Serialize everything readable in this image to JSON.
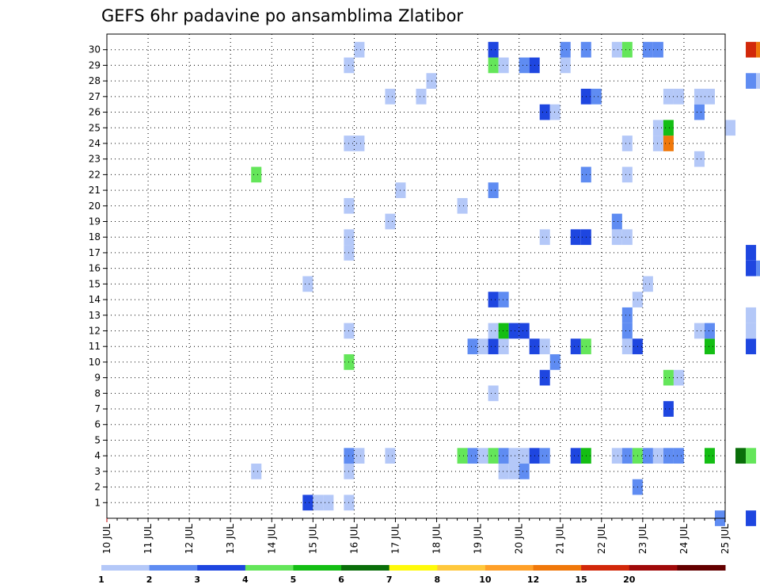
{
  "chart_data": {
    "type": "heatmap",
    "title": "GEFS 6hr padavine po ansamblima Zlatibor",
    "xlabel": "",
    "ylabel": "",
    "x_ticks": [
      "10 JUL",
      "11 JUL",
      "12 JUL",
      "13 JUL",
      "14 JUL",
      "15 JUL",
      "16 JUL",
      "17 JUL",
      "18 JUL",
      "19 JUL",
      "20 JUL",
      "21 JUL",
      "22 JUL",
      "23 JUL",
      "24 JUL",
      "25 JUL"
    ],
    "y_ticks": [
      "1",
      "2",
      "3",
      "4",
      "5",
      "6",
      "7",
      "8",
      "9",
      "10",
      "11",
      "12",
      "13",
      "14",
      "15",
      "16",
      "17",
      "18",
      "19",
      "20",
      "21",
      "22",
      "23",
      "24",
      "25",
      "26",
      "27",
      "28",
      "29",
      "30"
    ],
    "time_steps_per_day": 4,
    "grid": true,
    "legend_position": "bottom",
    "colorbar": {
      "labels": [
        "1",
        "2",
        "3",
        "4",
        "5",
        "6",
        "7",
        "8",
        "10",
        "12",
        "15",
        "20"
      ],
      "colors": [
        "#b4c8f8",
        "#5f8cf2",
        "#1e46e0",
        "#64e65a",
        "#14be14",
        "#0a6e0a",
        "#fffa0a",
        "#ffc83c",
        "#ffa028",
        "#f0780a",
        "#d2280a",
        "#a00a0a",
        "#640000"
      ]
    },
    "cells": [
      {
        "t": "14 JUL 18Z",
        "m": 1,
        "c": 3
      },
      {
        "t": "15 JUL 00Z",
        "m": 1,
        "c": 1
      },
      {
        "t": "15 JUL 06Z",
        "m": 1,
        "c": 1
      },
      {
        "t": "15 JUL 18Z",
        "m": 1,
        "c": 1
      },
      {
        "t": "22 JUL 18Z",
        "m": 2,
        "c": 2
      },
      {
        "t": "13 JUL 12Z",
        "m": 3,
        "c": 1
      },
      {
        "t": "15 JUL 18Z",
        "m": 3,
        "c": 1
      },
      {
        "t": "19 JUL 12Z",
        "m": 3,
        "c": 1
      },
      {
        "t": "19 JUL 18Z",
        "m": 3,
        "c": 1
      },
      {
        "t": "20 JUL 00Z",
        "m": 3,
        "c": 2
      },
      {
        "t": "15 JUL 18Z",
        "m": 4,
        "c": 2
      },
      {
        "t": "16 JUL 00Z",
        "m": 4,
        "c": 1
      },
      {
        "t": "16 JUL 18Z",
        "m": 4,
        "c": 1
      },
      {
        "t": "18 JUL 12Z",
        "m": 4,
        "c": 4
      },
      {
        "t": "18 JUL 18Z",
        "m": 4,
        "c": 2
      },
      {
        "t": "19 JUL 00Z",
        "m": 4,
        "c": 1
      },
      {
        "t": "19 JUL 06Z",
        "m": 4,
        "c": 4
      },
      {
        "t": "19 JUL 12Z",
        "m": 4,
        "c": 2
      },
      {
        "t": "19 JUL 18Z",
        "m": 4,
        "c": 1
      },
      {
        "t": "20 JUL 00Z",
        "m": 4,
        "c": 1
      },
      {
        "t": "20 JUL 06Z",
        "m": 4,
        "c": 3
      },
      {
        "t": "20 JUL 12Z",
        "m": 4,
        "c": 2
      },
      {
        "t": "21 JUL 06Z",
        "m": 4,
        "c": 3
      },
      {
        "t": "21 JUL 12Z",
        "m": 4,
        "c": 5
      },
      {
        "t": "22 JUL 06Z",
        "m": 4,
        "c": 1
      },
      {
        "t": "22 JUL 12Z",
        "m": 4,
        "c": 2
      },
      {
        "t": "22 JUL 18Z",
        "m": 4,
        "c": 4
      },
      {
        "t": "23 JUL 00Z",
        "m": 4,
        "c": 2
      },
      {
        "t": "23 JUL 06Z",
        "m": 4,
        "c": 1
      },
      {
        "t": "23 JUL 12Z",
        "m": 4,
        "c": 2
      },
      {
        "t": "23 JUL 18Z",
        "m": 4,
        "c": 2
      },
      {
        "t": "24 JUL 12Z",
        "m": 4,
        "c": 5
      },
      {
        "t": "25 JUL 06Z",
        "m": 4,
        "c": 6
      },
      {
        "t": "25 JUL 12Z",
        "m": 4,
        "c": 4
      },
      {
        "t": "23 JUL 12Z",
        "m": 7,
        "c": 3
      },
      {
        "t": "19 JUL 06Z",
        "m": 8,
        "c": 1
      },
      {
        "t": "20 JUL 12Z",
        "m": 9,
        "c": 3
      },
      {
        "t": "23 JUL 12Z",
        "m": 9,
        "c": 4
      },
      {
        "t": "23 JUL 18Z",
        "m": 9,
        "c": 1
      },
      {
        "t": "15 JUL 18Z",
        "m": 10,
        "c": 4
      },
      {
        "t": "20 JUL 18Z",
        "m": 10,
        "c": 2
      },
      {
        "t": "18 JUL 18Z",
        "m": 11,
        "c": 2
      },
      {
        "t": "19 JUL 00Z",
        "m": 11,
        "c": 1
      },
      {
        "t": "19 JUL 06Z",
        "m": 11,
        "c": 3
      },
      {
        "t": "19 JUL 12Z",
        "m": 11,
        "c": 1
      },
      {
        "t": "20 JUL 06Z",
        "m": 11,
        "c": 3
      },
      {
        "t": "20 JUL 12Z",
        "m": 11,
        "c": 1
      },
      {
        "t": "21 JUL 06Z",
        "m": 11,
        "c": 3
      },
      {
        "t": "21 JUL 12Z",
        "m": 11,
        "c": 4
      },
      {
        "t": "22 JUL 12Z",
        "m": 11,
        "c": 1
      },
      {
        "t": "22 JUL 18Z",
        "m": 11,
        "c": 3
      },
      {
        "t": "24 JUL 12Z",
        "m": 11,
        "c": 5
      },
      {
        "t": "25 JUL 12Z",
        "m": 11,
        "c": 3
      },
      {
        "t": "15 JUL 18Z",
        "m": 12,
        "c": 1
      },
      {
        "t": "19 JUL 06Z",
        "m": 12,
        "c": 1
      },
      {
        "t": "19 JUL 12Z",
        "m": 12,
        "c": 5
      },
      {
        "t": "19 JUL 18Z",
        "m": 12,
        "c": 3
      },
      {
        "t": "20 JUL 00Z",
        "m": 12,
        "c": 3
      },
      {
        "t": "22 JUL 12Z",
        "m": 12,
        "c": 2
      },
      {
        "t": "24 JUL 06Z",
        "m": 12,
        "c": 1
      },
      {
        "t": "24 JUL 12Z",
        "m": 12,
        "c": 2
      },
      {
        "t": "25 JUL 12Z",
        "m": 12,
        "c": 1
      },
      {
        "t": "22 JUL 12Z",
        "m": 13,
        "c": 2
      },
      {
        "t": "25 JUL 12Z",
        "m": 13,
        "c": 1
      },
      {
        "t": "19 JUL 06Z",
        "m": 14,
        "c": 3
      },
      {
        "t": "19 JUL 12Z",
        "m": 14,
        "c": 2
      },
      {
        "t": "22 JUL 18Z",
        "m": 14,
        "c": 1
      },
      {
        "t": "14 JUL 18Z",
        "m": 15,
        "c": 1
      },
      {
        "t": "23 JUL 00Z",
        "m": 15,
        "c": 1
      },
      {
        "t": "25 JUL 12Z",
        "m": 16,
        "c": 3
      },
      {
        "t": "25 JUL 18Z",
        "m": 16,
        "c": 2
      },
      {
        "t": "15 JUL 18Z",
        "m": 17,
        "c": 1
      },
      {
        "t": "25 JUL 12Z",
        "m": 17,
        "c": 3
      },
      {
        "t": "15 JUL 18Z",
        "m": 18,
        "c": 1
      },
      {
        "t": "20 JUL 12Z",
        "m": 18,
        "c": 1
      },
      {
        "t": "21 JUL 06Z",
        "m": 18,
        "c": 3
      },
      {
        "t": "21 JUL 12Z",
        "m": 18,
        "c": 3
      },
      {
        "t": "22 JUL 06Z",
        "m": 18,
        "c": 1
      },
      {
        "t": "22 JUL 12Z",
        "m": 18,
        "c": 1
      },
      {
        "t": "16 JUL 18Z",
        "m": 19,
        "c": 1
      },
      {
        "t": "22 JUL 06Z",
        "m": 19,
        "c": 2
      },
      {
        "t": "15 JUL 18Z",
        "m": 20,
        "c": 1
      },
      {
        "t": "18 JUL 12Z",
        "m": 20,
        "c": 1
      },
      {
        "t": "17 JUL 00Z",
        "m": 21,
        "c": 1
      },
      {
        "t": "19 JUL 06Z",
        "m": 21,
        "c": 2
      },
      {
        "t": "13 JUL 12Z",
        "m": 22,
        "c": 4
      },
      {
        "t": "21 JUL 12Z",
        "m": 22,
        "c": 2
      },
      {
        "t": "22 JUL 12Z",
        "m": 22,
        "c": 1
      },
      {
        "t": "24 JUL 06Z",
        "m": 23,
        "c": 1
      },
      {
        "t": "15 JUL 18Z",
        "m": 24,
        "c": 1
      },
      {
        "t": "16 JUL 00Z",
        "m": 24,
        "c": 1
      },
      {
        "t": "22 JUL 12Z",
        "m": 24,
        "c": 1
      },
      {
        "t": "23 JUL 06Z",
        "m": 24,
        "c": 1
      },
      {
        "t": "23 JUL 12Z",
        "m": 24,
        "c": 10
      },
      {
        "t": "23 JUL 06Z",
        "m": 25,
        "c": 1
      },
      {
        "t": "23 JUL 12Z",
        "m": 25,
        "c": 5
      },
      {
        "t": "25 JUL 00Z",
        "m": 25,
        "c": 1
      },
      {
        "t": "20 JUL 12Z",
        "m": 26,
        "c": 3
      },
      {
        "t": "20 JUL 18Z",
        "m": 26,
        "c": 1
      },
      {
        "t": "24 JUL 06Z",
        "m": 26,
        "c": 2
      },
      {
        "t": "16 JUL 18Z",
        "m": 27,
        "c": 1
      },
      {
        "t": "17 JUL 12Z",
        "m": 27,
        "c": 1
      },
      {
        "t": "21 JUL 12Z",
        "m": 27,
        "c": 3
      },
      {
        "t": "21 JUL 18Z",
        "m": 27,
        "c": 2
      },
      {
        "t": "23 JUL 12Z",
        "m": 27,
        "c": 1
      },
      {
        "t": "23 JUL 18Z",
        "m": 27,
        "c": 1
      },
      {
        "t": "24 JUL 06Z",
        "m": 27,
        "c": 1
      },
      {
        "t": "24 JUL 12Z",
        "m": 27,
        "c": 1
      },
      {
        "t": "17 JUL 18Z",
        "m": 28,
        "c": 1
      },
      {
        "t": "25 JUL 12Z",
        "m": 28,
        "c": 2
      },
      {
        "t": "25 JUL 18Z",
        "m": 28,
        "c": 1
      },
      {
        "t": "15 JUL 18Z",
        "m": 29,
        "c": 1
      },
      {
        "t": "19 JUL 06Z",
        "m": 29,
        "c": 4
      },
      {
        "t": "19 JUL 12Z",
        "m": 29,
        "c": 1
      },
      {
        "t": "20 JUL 00Z",
        "m": 29,
        "c": 2
      },
      {
        "t": "20 JUL 06Z",
        "m": 29,
        "c": 3
      },
      {
        "t": "21 JUL 00Z",
        "m": 29,
        "c": 1
      },
      {
        "t": "16 JUL 00Z",
        "m": 30,
        "c": 1
      },
      {
        "t": "19 JUL 06Z",
        "m": 30,
        "c": 3
      },
      {
        "t": "21 JUL 00Z",
        "m": 30,
        "c": 2
      },
      {
        "t": "21 JUL 12Z",
        "m": 30,
        "c": 2
      },
      {
        "t": "22 JUL 06Z",
        "m": 30,
        "c": 1
      },
      {
        "t": "22 JUL 12Z",
        "m": 30,
        "c": 4
      },
      {
        "t": "23 JUL 00Z",
        "m": 30,
        "c": 2
      },
      {
        "t": "23 JUL 06Z",
        "m": 30,
        "c": 2
      },
      {
        "t": "25 JUL 12Z",
        "m": 30,
        "c": 11
      },
      {
        "t": "25 JUL 18Z",
        "m": 30,
        "c": 10
      },
      {
        "t": "24 JUL 18Z",
        "m": 0,
        "c": 2
      },
      {
        "t": "25 JUL 12Z",
        "m": 0,
        "c": 3
      }
    ]
  }
}
